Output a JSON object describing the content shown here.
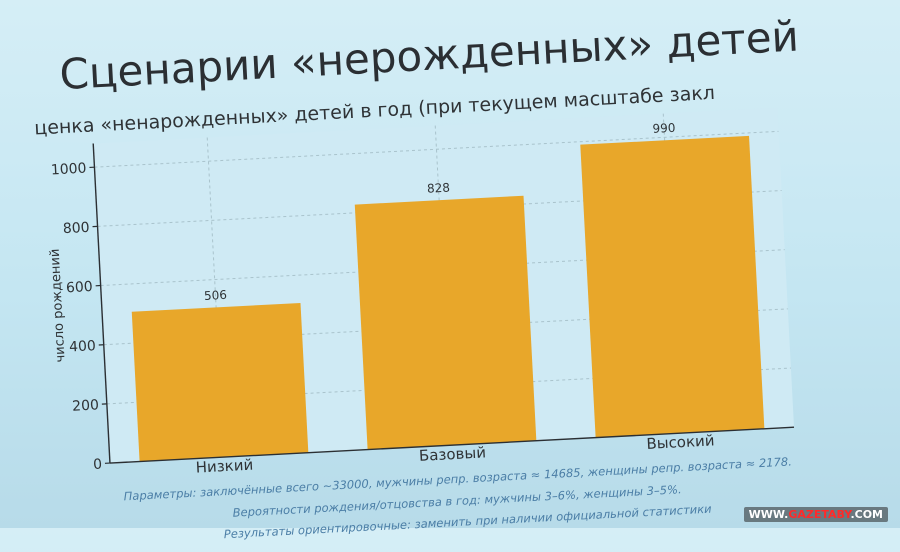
{
  "slide": {
    "title": "Сценарии «нерожденных» детей",
    "subtitle": "ценка «ненарожденных» детей в год (при текущем масштабе закл"
  },
  "chart_data": {
    "type": "bar",
    "categories": [
      "Низкий",
      "Базовый",
      "Высокий"
    ],
    "values": [
      506,
      828,
      990
    ],
    "value_labels": [
      "506",
      "828",
      "990"
    ],
    "ylabel": "число рождений",
    "ylim": [
      0,
      1080
    ],
    "yticks": [
      0,
      200,
      400,
      600,
      800,
      1000
    ],
    "grid": true,
    "bar_color": "#e8a72a"
  },
  "footnotes": [
    "Параметры: заключённые всего ~33000, мужчины репр. возраста ≈ 14685, женщины репр. возраста ≈ 2178.",
    "Вероятности рождения/отцовства в год: мужчины 3–6%, женщины 3–5%.",
    "Результаты ориентировочные: заменить при наличии официальной статистики"
  ],
  "watermark": {
    "prefix": "WWW.",
    "brand": "GAZETABY",
    "suffix": ".COM"
  }
}
